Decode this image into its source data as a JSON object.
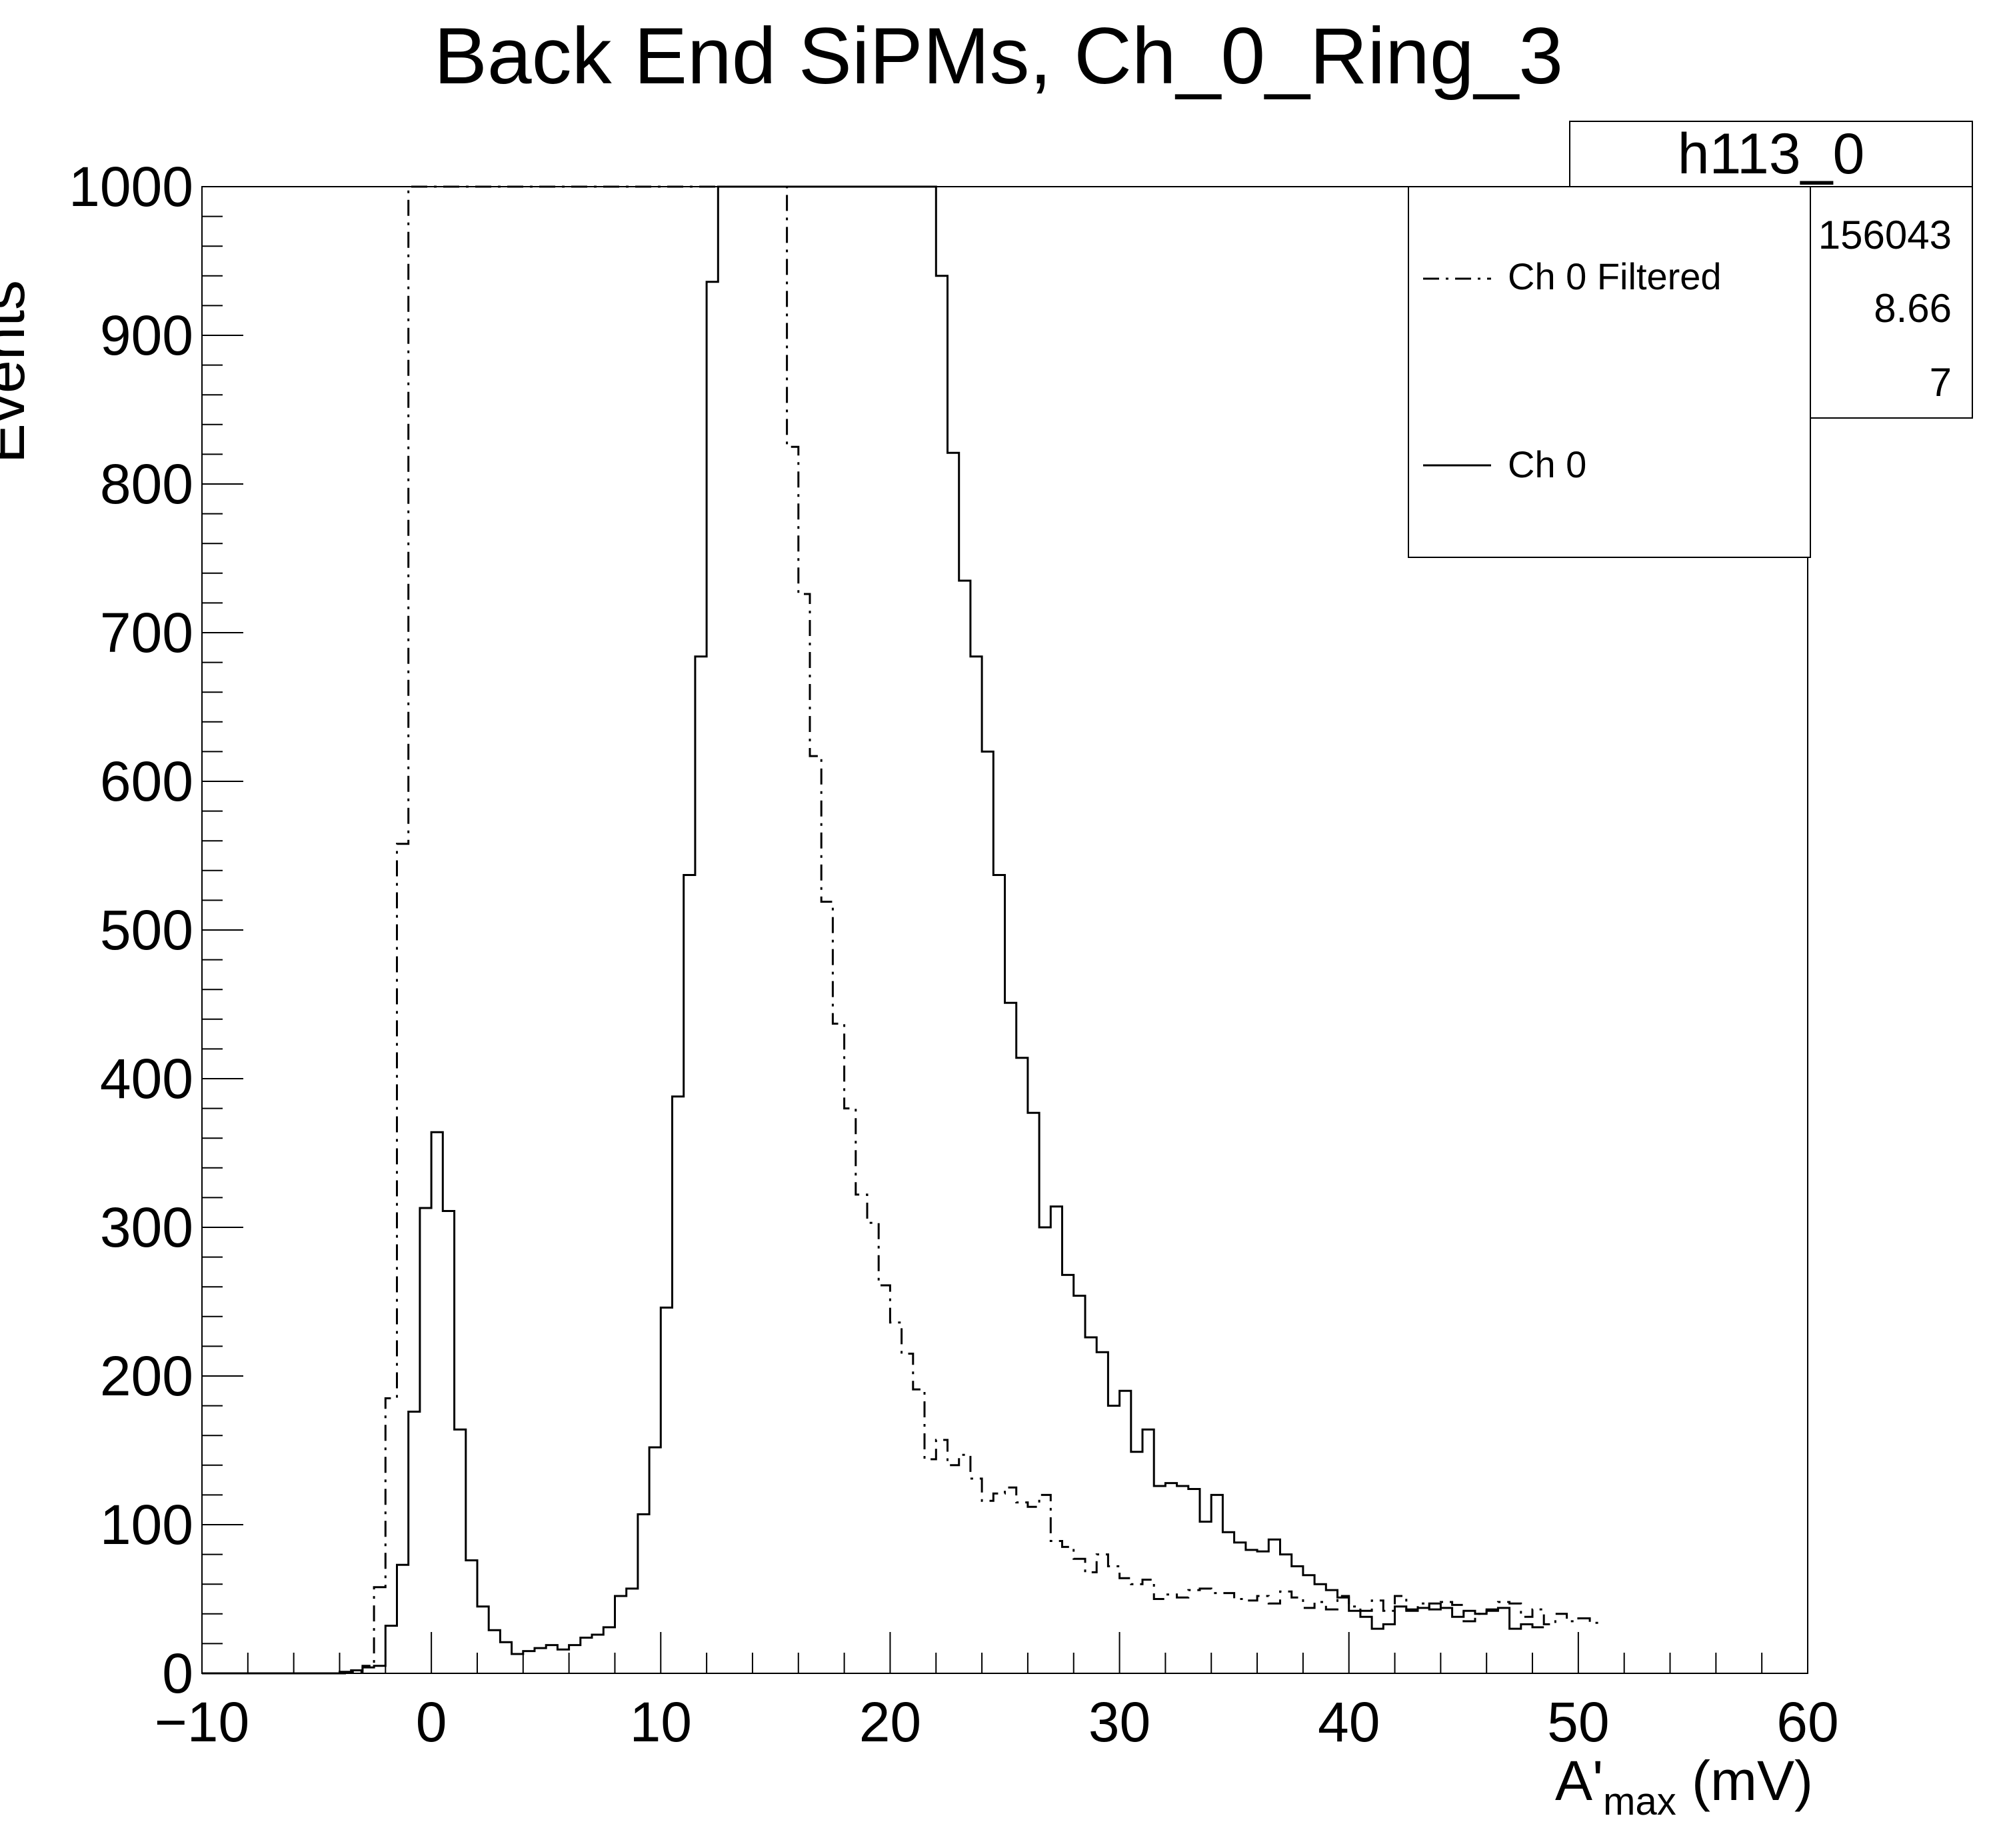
{
  "chart_data": {
    "type": "histogram",
    "title": "Back End SiPMs, Ch_0_Ring_3",
    "ylabel": "Events",
    "xlabel": {
      "main": "A'",
      "sub": "max",
      "unit": " (mV)"
    },
    "xlim": [
      -10,
      60
    ],
    "ylim": [
      0,
      1000
    ],
    "bin_width": 0.5,
    "x_start": -10,
    "x_ticks": [
      -10,
      0,
      10,
      20,
      30,
      40,
      50,
      60
    ],
    "x_tick_labels": [
      "−10",
      "0",
      "10",
      "20",
      "30",
      "40",
      "50",
      "60"
    ],
    "y_ticks": [
      0,
      100,
      200,
      300,
      400,
      500,
      600,
      700,
      800,
      900,
      1000
    ],
    "y_tick_labels": [
      "0",
      "100",
      "200",
      "300",
      "400",
      "500",
      "600",
      "700",
      "800",
      "900",
      "1000"
    ],
    "stats_box": {
      "name": "h113_0",
      "values": [
        "156043",
        "8.66",
        "7"
      ]
    },
    "legend": {
      "position": "top-right",
      "entries": [
        {
          "label": "Ch 0 Filtered",
          "style": "dash-dot"
        },
        {
          "label": "Ch 0",
          "style": "solid"
        }
      ]
    },
    "series": [
      {
        "name": "Ch 0",
        "style": "solid",
        "values": [
          0,
          0,
          0,
          0,
          0,
          0,
          0,
          0,
          0,
          0,
          0,
          0,
          1,
          2,
          4,
          5,
          32,
          73,
          176,
          313,
          364,
          311,
          164,
          76,
          45,
          29,
          21,
          13,
          15,
          17,
          19,
          16,
          19,
          24,
          26,
          31,
          52,
          57,
          107,
          152,
          246,
          388,
          537,
          684,
          936,
          1000,
          1000,
          1000,
          1000,
          1000,
          1000,
          1000,
          1000,
          1000,
          1000,
          1000,
          1000,
          1000,
          1000,
          1000,
          1000,
          1000,
          1000,
          1000,
          940,
          821,
          735,
          684,
          620,
          537,
          451,
          414,
          377,
          300,
          314,
          268,
          254,
          226,
          216,
          180,
          190,
          149,
          164,
          126,
          128,
          126,
          124,
          102,
          120,
          95,
          88,
          83,
          82,
          90,
          80,
          72,
          66,
          60,
          56,
          51,
          42,
          38,
          30,
          33,
          45,
          42,
          44,
          47,
          44,
          38,
          42,
          40,
          43,
          44,
          30,
          33,
          31
        ]
      },
      {
        "name": "Ch 0 Filtered",
        "style": "dash-dot",
        "values": [
          0,
          0,
          0,
          0,
          0,
          0,
          0,
          0,
          0,
          0,
          0,
          0,
          0,
          1,
          5,
          58,
          185,
          558,
          1000,
          1000,
          1000,
          1000,
          1000,
          1000,
          1000,
          1000,
          1000,
          1000,
          1000,
          1000,
          1000,
          1000,
          1000,
          1000,
          1000,
          1000,
          1000,
          1000,
          1000,
          1000,
          1000,
          1000,
          1000,
          1000,
          1000,
          1000,
          1000,
          1000,
          1000,
          1000,
          1000,
          825,
          726,
          617,
          519,
          437,
          380,
          322,
          303,
          261,
          236,
          215,
          191,
          144,
          157,
          140,
          147,
          131,
          116,
          121,
          125,
          115,
          112,
          120,
          89,
          85,
          77,
          68,
          80,
          72,
          64,
          60,
          63,
          50,
          53,
          51,
          56,
          57,
          54,
          54,
          50,
          49,
          52,
          47,
          55,
          51,
          44,
          48,
          43,
          52,
          45,
          42,
          49,
          42,
          52,
          43,
          47,
          43,
          48,
          46,
          35,
          40,
          42,
          48,
          47,
          38,
          43,
          33,
          40,
          35,
          37,
          34
        ]
      }
    ]
  }
}
